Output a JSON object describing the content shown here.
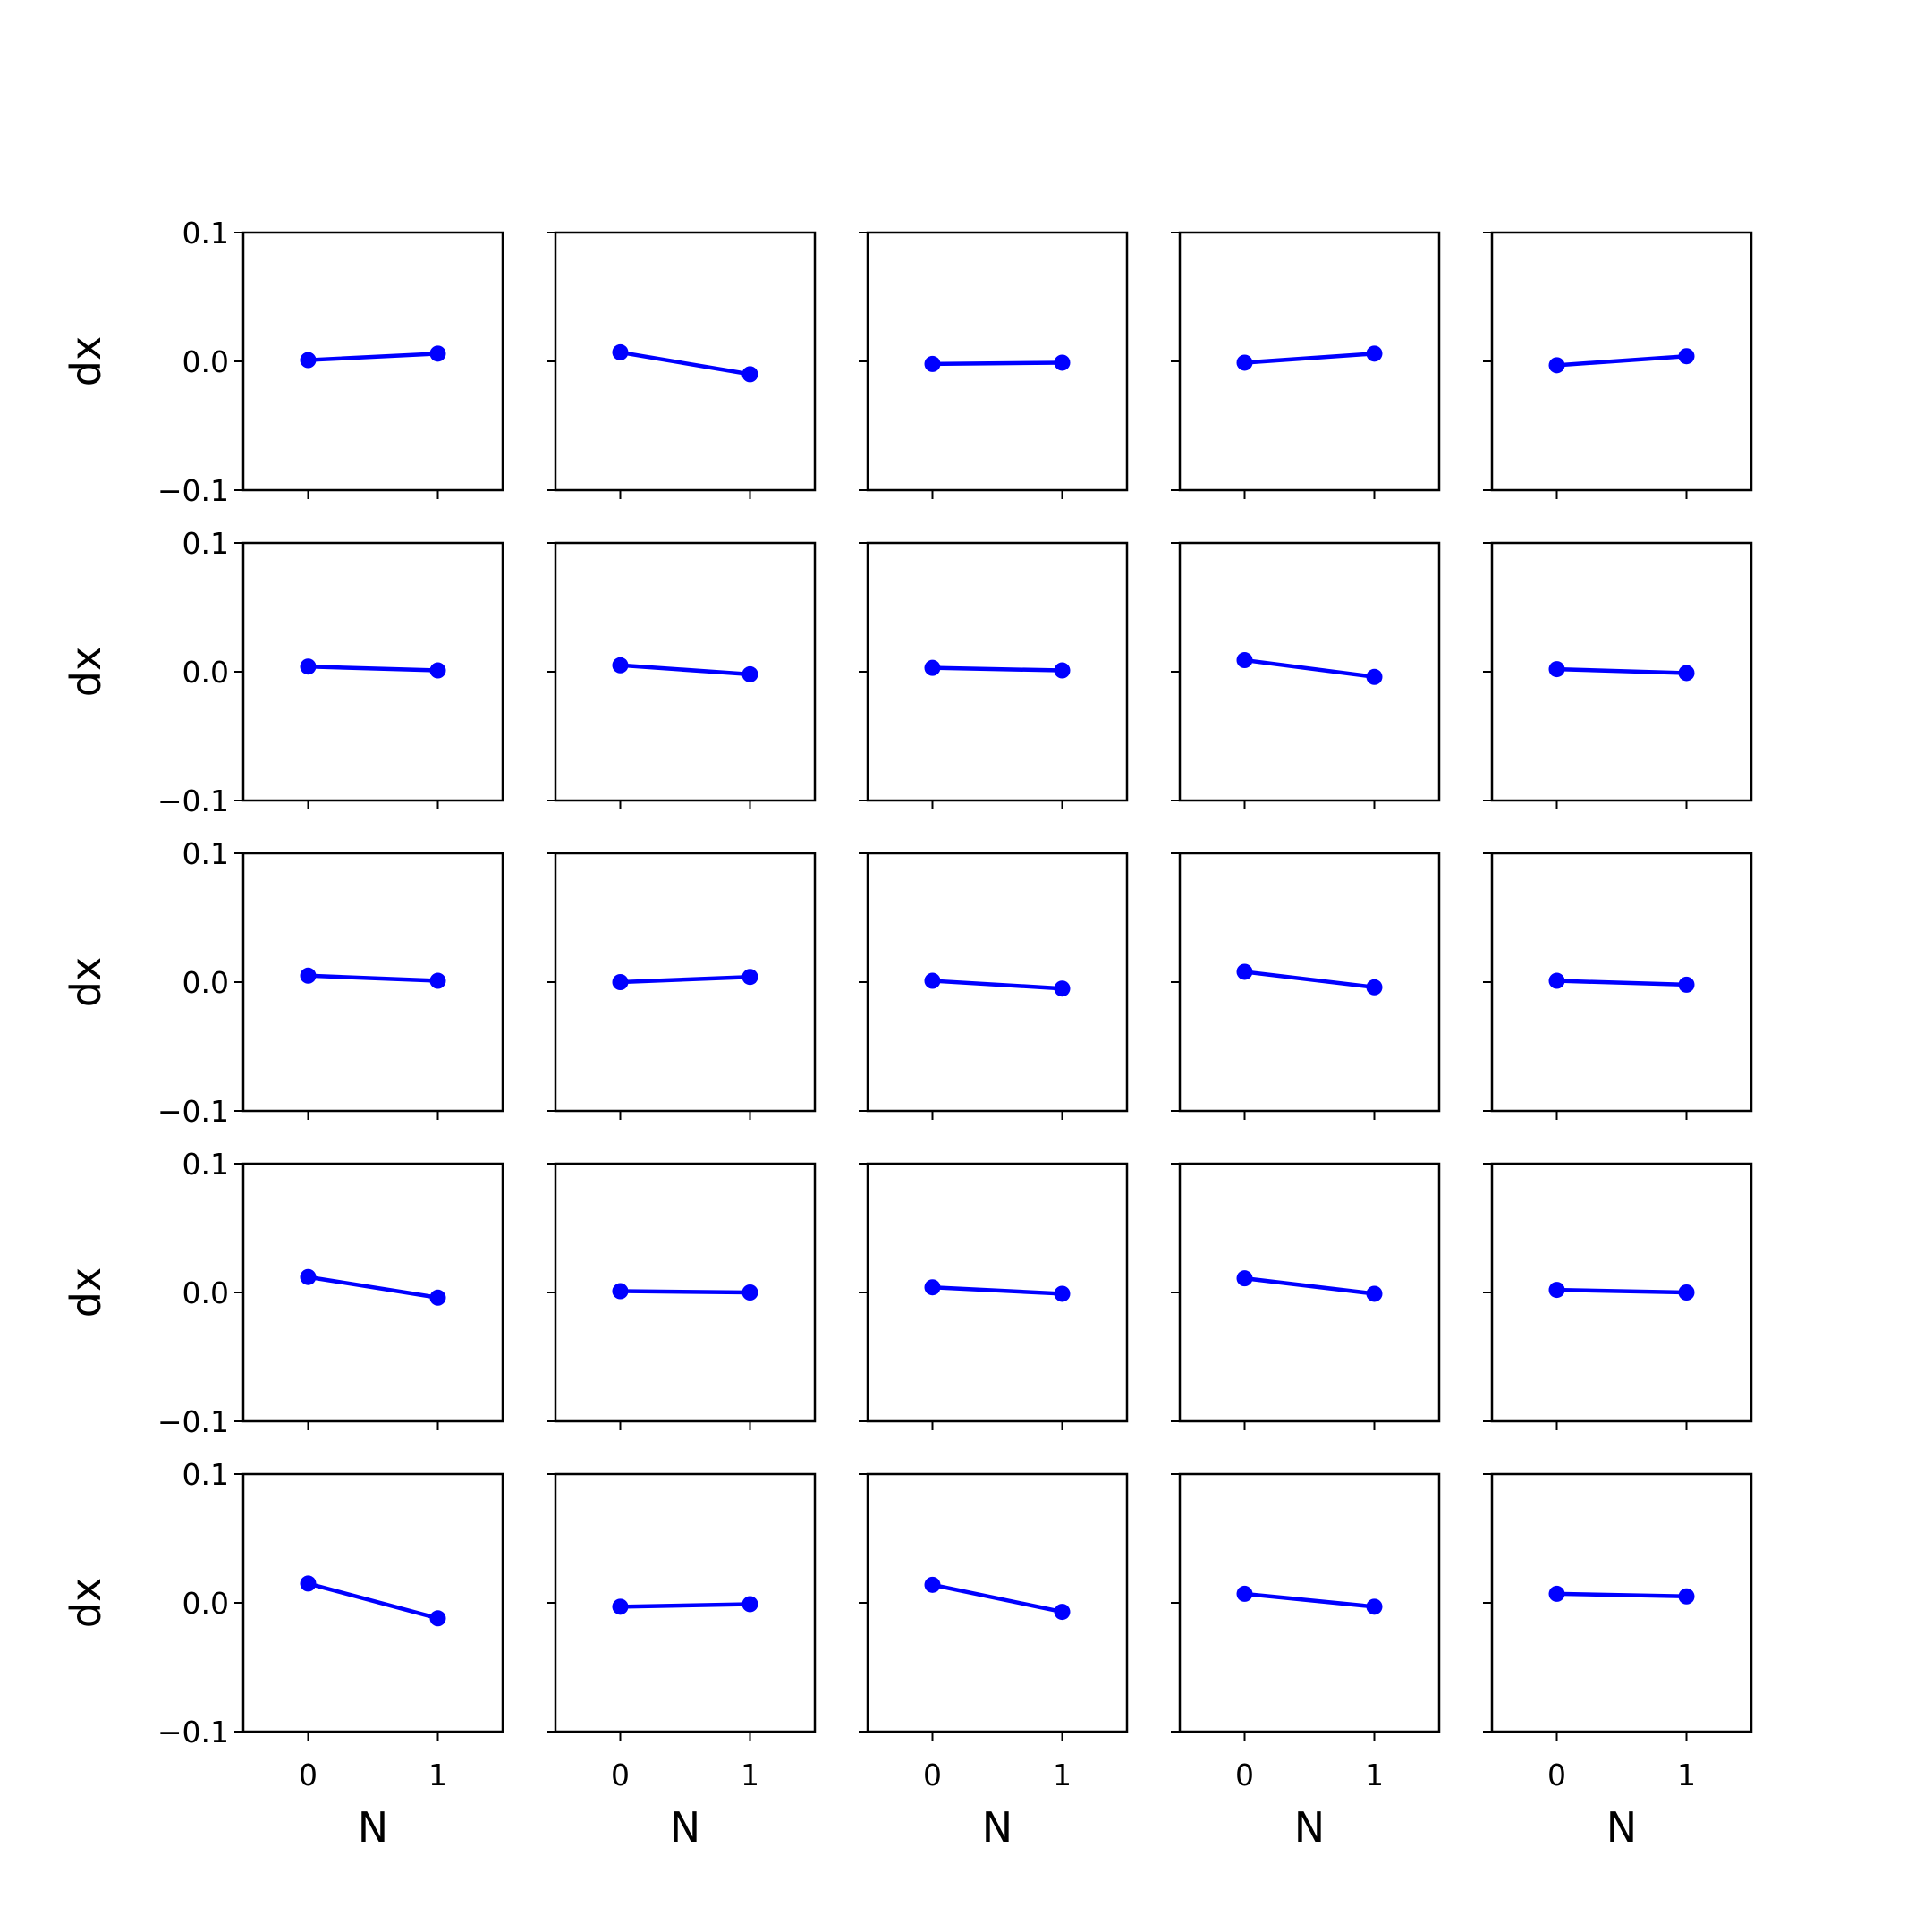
{
  "chart_data": {
    "type": "line",
    "layout": "5x5 grid of small multiples, shared x and y axes",
    "xlabel": "N",
    "ylabel": "dx",
    "xticks": [
      0,
      1
    ],
    "xlim": [
      -0.5,
      1.5
    ],
    "ylim": [
      -0.1,
      0.1
    ],
    "yticks": [
      -0.1,
      0.0,
      0.1
    ],
    "ytick_labels": [
      "−0.1",
      "0.0",
      "0.1"
    ],
    "xtick_labels": [
      "0",
      "1"
    ],
    "grid": false,
    "legend": false,
    "marker": "circle",
    "color": "#0000ff",
    "panels": [
      {
        "x": [
          0,
          1
        ],
        "y": [
          0.001,
          0.006
        ]
      },
      {
        "x": [
          0,
          1
        ],
        "y": [
          0.007,
          -0.01
        ]
      },
      {
        "x": [
          0,
          1
        ],
        "y": [
          -0.002,
          -0.001
        ]
      },
      {
        "x": [
          0,
          1
        ],
        "y": [
          -0.001,
          0.006
        ]
      },
      {
        "x": [
          0,
          1
        ],
        "y": [
          -0.003,
          0.004
        ]
      },
      {
        "x": [
          0,
          1
        ],
        "y": [
          0.004,
          0.001
        ]
      },
      {
        "x": [
          0,
          1
        ],
        "y": [
          0.005,
          -0.002
        ]
      },
      {
        "x": [
          0,
          1
        ],
        "y": [
          0.003,
          0.001
        ]
      },
      {
        "x": [
          0,
          1
        ],
        "y": [
          0.009,
          -0.004
        ]
      },
      {
        "x": [
          0,
          1
        ],
        "y": [
          0.002,
          -0.001
        ]
      },
      {
        "x": [
          0,
          1
        ],
        "y": [
          0.005,
          0.001
        ]
      },
      {
        "x": [
          0,
          1
        ],
        "y": [
          0.0,
          0.004
        ]
      },
      {
        "x": [
          0,
          1
        ],
        "y": [
          0.001,
          -0.005
        ]
      },
      {
        "x": [
          0,
          1
        ],
        "y": [
          0.008,
          -0.004
        ]
      },
      {
        "x": [
          0,
          1
        ],
        "y": [
          0.001,
          -0.002
        ]
      },
      {
        "x": [
          0,
          1
        ],
        "y": [
          0.012,
          -0.004
        ]
      },
      {
        "x": [
          0,
          1
        ],
        "y": [
          0.001,
          0.0
        ]
      },
      {
        "x": [
          0,
          1
        ],
        "y": [
          0.004,
          -0.001
        ]
      },
      {
        "x": [
          0,
          1
        ],
        "y": [
          0.011,
          -0.001
        ]
      },
      {
        "x": [
          0,
          1
        ],
        "y": [
          0.002,
          0.0
        ]
      },
      {
        "x": [
          0,
          1
        ],
        "y": [
          0.015,
          -0.012
        ]
      },
      {
        "x": [
          0,
          1
        ],
        "y": [
          -0.003,
          -0.001
        ]
      },
      {
        "x": [
          0,
          1
        ],
        "y": [
          0.014,
          -0.007
        ]
      },
      {
        "x": [
          0,
          1
        ],
        "y": [
          0.007,
          -0.003
        ]
      },
      {
        "x": [
          0,
          1
        ],
        "y": [
          0.007,
          0.005
        ]
      }
    ]
  }
}
